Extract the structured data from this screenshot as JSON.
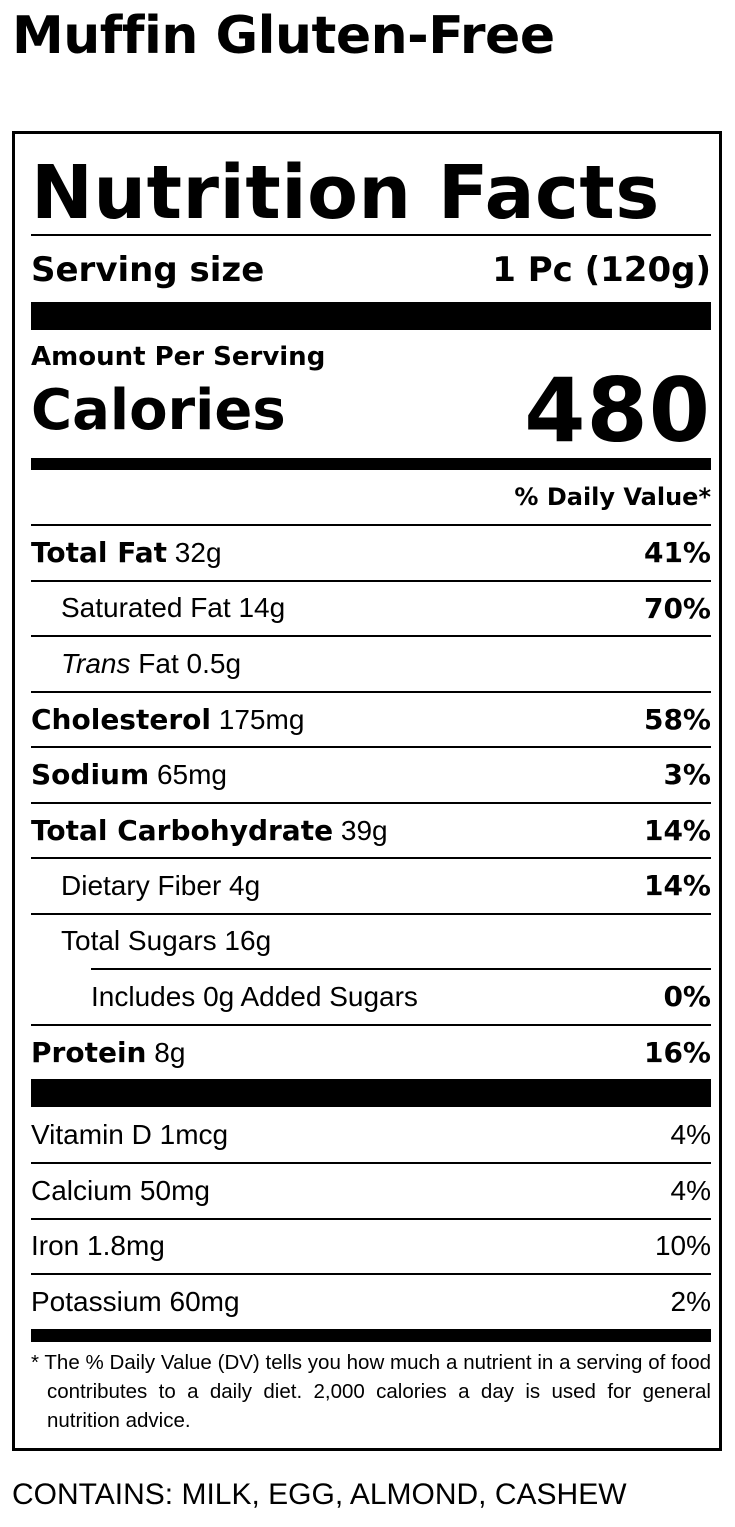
{
  "product_title": "Muffin Gluten-Free",
  "label": {
    "heading": "Nutrition Facts",
    "serving_size_label": "Serving size",
    "serving_size_value": "1 Pc (120g)",
    "amount_per_serving": "Amount Per Serving",
    "calories_label": "Calories",
    "calories_value": "480",
    "daily_value_header": "% Daily Value*",
    "nutrients": [
      {
        "name": "Total Fat",
        "amount": "32g",
        "dv": "41%"
      },
      {
        "name": "Saturated Fat",
        "amount": "14g",
        "dv": "70%"
      },
      {
        "name": "Trans",
        "name_suffix": "Fat",
        "amount": "0.5g",
        "dv": ""
      },
      {
        "name": "Cholesterol",
        "amount": "175mg",
        "dv": "58%"
      },
      {
        "name": "Sodium",
        "amount": "65mg",
        "dv": "3%"
      },
      {
        "name": "Total Carbohydrate",
        "amount": "39g",
        "dv": "14%"
      },
      {
        "name": "Dietary Fiber",
        "amount": "4g",
        "dv": "14%"
      },
      {
        "name": "Total Sugars",
        "amount": "16g",
        "dv": ""
      },
      {
        "name": "Includes 0g Added Sugars",
        "amount": "",
        "dv": "0%"
      },
      {
        "name": "Protein",
        "amount": "8g",
        "dv": "16%"
      }
    ],
    "vitamins": [
      {
        "name": "Vitamin D",
        "amount": "1mcg",
        "dv": "4%"
      },
      {
        "name": "Calcium",
        "amount": "50mg",
        "dv": "4%"
      },
      {
        "name": "Iron",
        "amount": "1.8mg",
        "dv": "10%"
      },
      {
        "name": "Potassium",
        "amount": "60mg",
        "dv": "2%"
      }
    ],
    "footnote": "* The % Daily Value (DV) tells you how much a nutrient in a serving of food contributes to a daily diet. 2,000 calories a day is used for general nutrition advice."
  },
  "contains": "CONTAINS: MILK, EGG, ALMOND, CASHEW"
}
